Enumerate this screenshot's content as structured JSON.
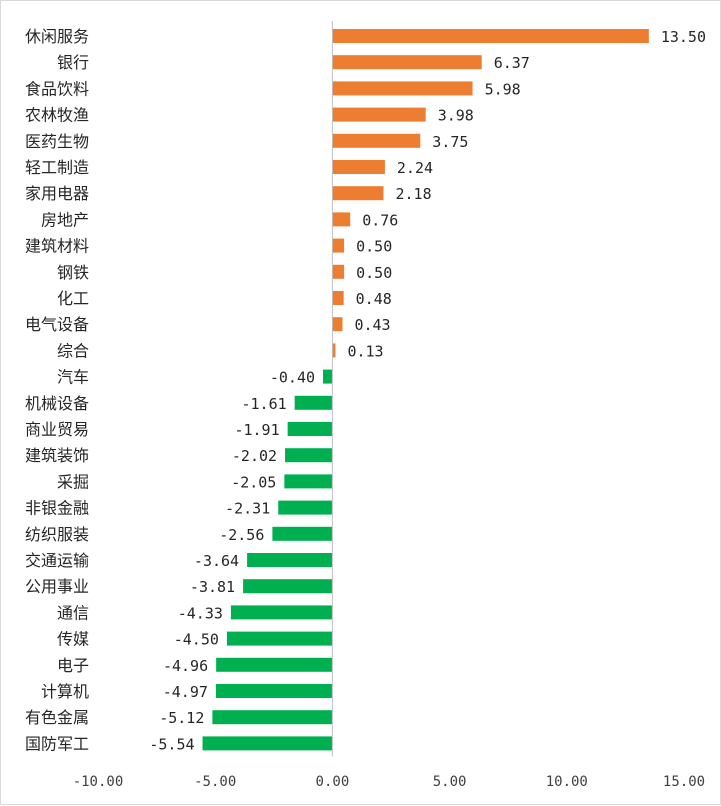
{
  "chart_data": {
    "type": "bar",
    "orientation": "horizontal",
    "title": "",
    "xlabel": "",
    "ylabel": "",
    "xlim": [
      -10,
      15
    ],
    "xticks": [
      -10,
      -5,
      0,
      5,
      10,
      15
    ],
    "xtick_labels": [
      "-10.00",
      "-5.00",
      "0.00",
      "5.00",
      "10.00",
      "15.00"
    ],
    "grid": false,
    "legend": "none",
    "colors": {
      "positive": "#ed7d31",
      "negative": "#00b050",
      "axis": "#bfbfbf"
    },
    "categories": [
      "休闲服务",
      "银行",
      "食品饮料",
      "农林牧渔",
      "医药生物",
      "轻工制造",
      "家用电器",
      "房地产",
      "建筑材料",
      "钢铁",
      "化工",
      "电气设备",
      "综合",
      "汽车",
      "机械设备",
      "商业贸易",
      "建筑装饰",
      "采掘",
      "非银金融",
      "纺织服装",
      "交通运输",
      "公用事业",
      "通信",
      "传媒",
      "电子",
      "计算机",
      "有色金属",
      "国防军工"
    ],
    "values": [
      13.5,
      6.37,
      5.98,
      3.98,
      3.75,
      2.24,
      2.18,
      0.76,
      0.5,
      0.5,
      0.48,
      0.43,
      0.13,
      -0.4,
      -1.61,
      -1.91,
      -2.02,
      -2.05,
      -2.31,
      -2.56,
      -3.64,
      -3.81,
      -4.33,
      -4.5,
      -4.96,
      -4.97,
      -5.12,
      -5.54
    ],
    "value_labels": [
      "13.50",
      "6.37",
      "5.98",
      "3.98",
      "3.75",
      "2.24",
      "2.18",
      "0.76",
      "0.50",
      "0.50",
      "0.48",
      "0.43",
      "0.13",
      "-0.40",
      "-1.61",
      "-1.91",
      "-2.02",
      "-2.05",
      "-2.31",
      "-2.56",
      "-3.64",
      "-3.81",
      "-4.33",
      "-4.50",
      "-4.96",
      "-4.97",
      "-5.12",
      "-5.54"
    ]
  }
}
